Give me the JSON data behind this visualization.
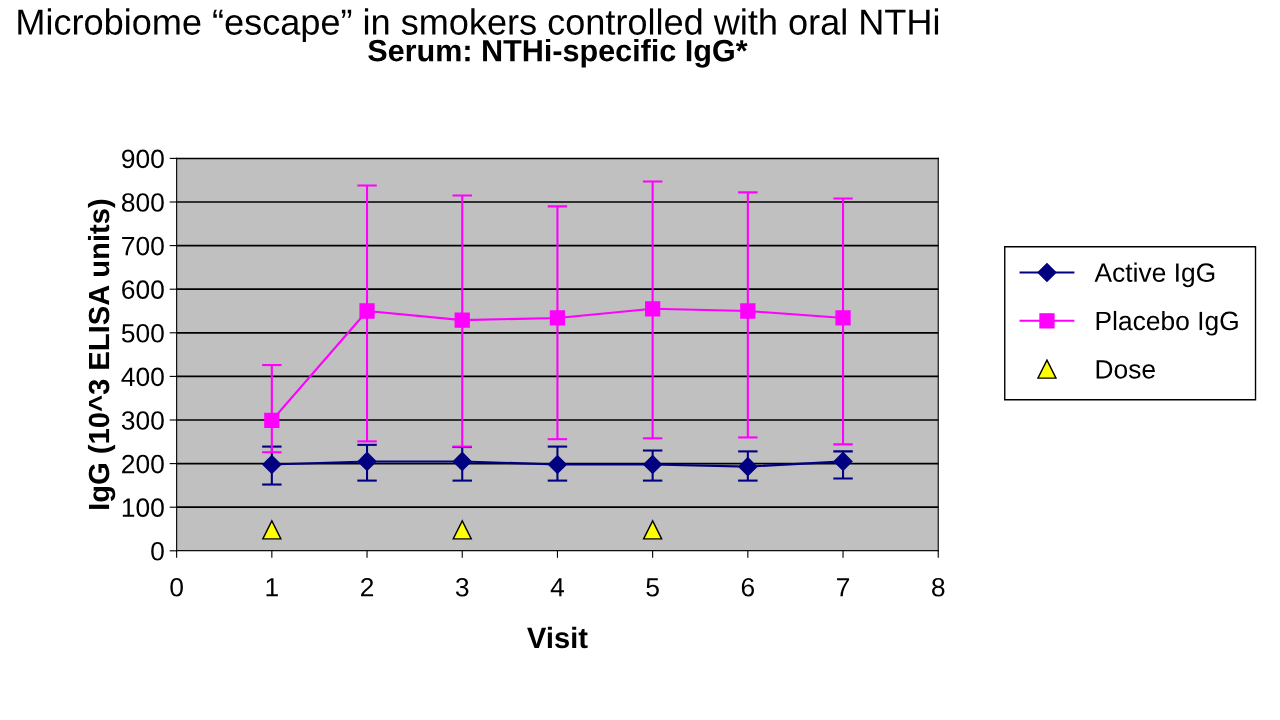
{
  "chart_data": {
    "type": "line",
    "title": "Microbiome “escape” in smokers controlled with oral NTHi",
    "subtitle": "Serum: NTHi-specific IgG*",
    "xlabel": "Visit",
    "ylabel": "IgG (10^3 ELISA units)",
    "x": [
      1,
      2,
      3,
      4,
      5,
      6,
      7
    ],
    "series": [
      {
        "name": "Active IgG",
        "color": "#000080",
        "marker": "diamond",
        "values": [
          198,
          205,
          205,
          198,
          198,
          193,
          205
        ],
        "errors": [
          [
            152,
            239
          ],
          [
            161,
            243
          ],
          [
            161,
            238
          ],
          [
            161,
            239
          ],
          [
            161,
            230
          ],
          [
            161,
            228
          ],
          [
            166,
            228
          ]
        ]
      },
      {
        "name": "Placebo IgG",
        "color": "#ff00ff",
        "marker": "square",
        "values": [
          299,
          550,
          529,
          534,
          555,
          550,
          534
        ],
        "errors": [
          [
            226,
            426
          ],
          [
            251,
            838
          ],
          [
            239,
            815
          ],
          [
            256,
            790
          ],
          [
            258,
            847
          ],
          [
            260,
            822
          ],
          [
            244,
            808
          ]
        ]
      },
      {
        "name": "Dose",
        "type": "scatter",
        "color": "#ffff00",
        "marker": "triangle",
        "x": [
          1,
          3,
          5
        ],
        "values": [
          48,
          48,
          48
        ]
      }
    ],
    "xlim": [
      0,
      8
    ],
    "xticks": [
      0,
      1,
      2,
      3,
      4,
      5,
      6,
      7,
      8
    ],
    "ylim": [
      0,
      900
    ],
    "yticks": [
      0,
      100,
      200,
      300,
      400,
      500,
      600,
      700,
      800,
      900
    ],
    "grid": "y",
    "legend": "right"
  }
}
